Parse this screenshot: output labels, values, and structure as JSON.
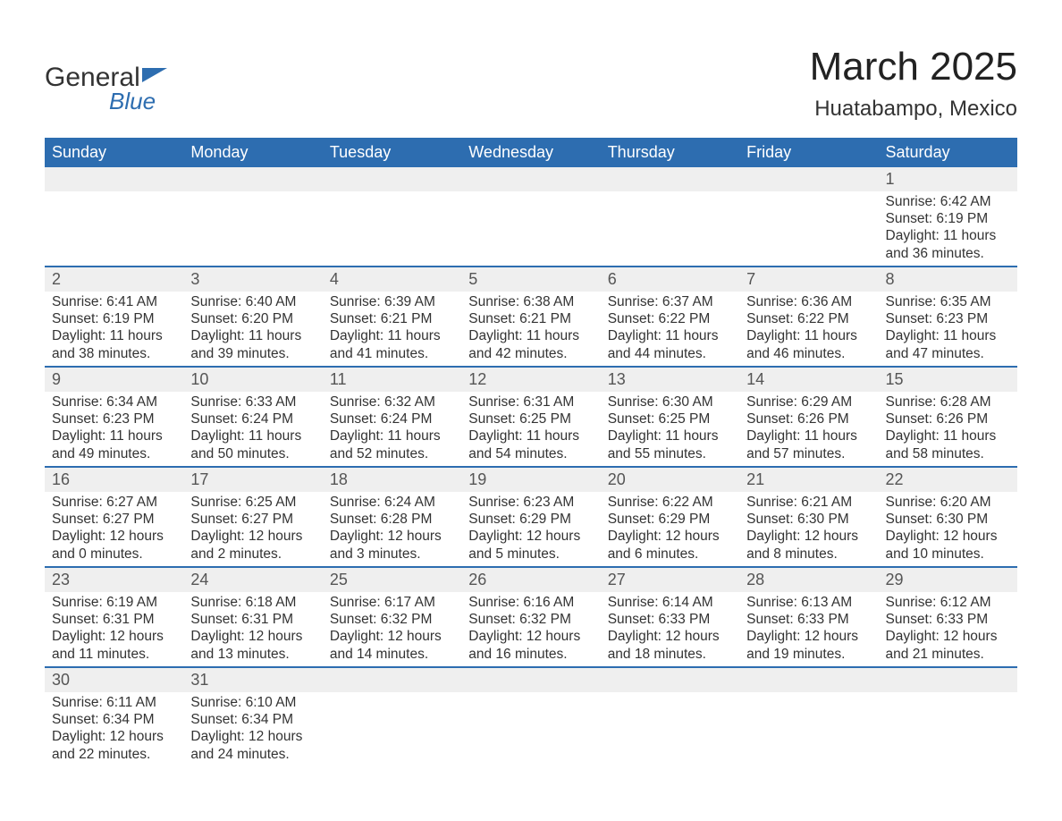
{
  "logo": {
    "line1": "General",
    "line2": "Blue"
  },
  "title": "March 2025",
  "subtitle": "Huatabampo, Mexico",
  "header_color": "#2d6db0",
  "row_separator_color": "#2d6db0",
  "daynum_bg": "#efefef",
  "text_color": "#333333",
  "weekdays": [
    "Sunday",
    "Monday",
    "Tuesday",
    "Wednesday",
    "Thursday",
    "Friday",
    "Saturday"
  ],
  "start_weekday_index": 6,
  "days": [
    {
      "n": 1,
      "sunrise": "6:42 AM",
      "sunset": "6:19 PM",
      "daylight": "11 hours and 36 minutes."
    },
    {
      "n": 2,
      "sunrise": "6:41 AM",
      "sunset": "6:19 PM",
      "daylight": "11 hours and 38 minutes."
    },
    {
      "n": 3,
      "sunrise": "6:40 AM",
      "sunset": "6:20 PM",
      "daylight": "11 hours and 39 minutes."
    },
    {
      "n": 4,
      "sunrise": "6:39 AM",
      "sunset": "6:21 PM",
      "daylight": "11 hours and 41 minutes."
    },
    {
      "n": 5,
      "sunrise": "6:38 AM",
      "sunset": "6:21 PM",
      "daylight": "11 hours and 42 minutes."
    },
    {
      "n": 6,
      "sunrise": "6:37 AM",
      "sunset": "6:22 PM",
      "daylight": "11 hours and 44 minutes."
    },
    {
      "n": 7,
      "sunrise": "6:36 AM",
      "sunset": "6:22 PM",
      "daylight": "11 hours and 46 minutes."
    },
    {
      "n": 8,
      "sunrise": "6:35 AM",
      "sunset": "6:23 PM",
      "daylight": "11 hours and 47 minutes."
    },
    {
      "n": 9,
      "sunrise": "6:34 AM",
      "sunset": "6:23 PM",
      "daylight": "11 hours and 49 minutes."
    },
    {
      "n": 10,
      "sunrise": "6:33 AM",
      "sunset": "6:24 PM",
      "daylight": "11 hours and 50 minutes."
    },
    {
      "n": 11,
      "sunrise": "6:32 AM",
      "sunset": "6:24 PM",
      "daylight": "11 hours and 52 minutes."
    },
    {
      "n": 12,
      "sunrise": "6:31 AM",
      "sunset": "6:25 PM",
      "daylight": "11 hours and 54 minutes."
    },
    {
      "n": 13,
      "sunrise": "6:30 AM",
      "sunset": "6:25 PM",
      "daylight": "11 hours and 55 minutes."
    },
    {
      "n": 14,
      "sunrise": "6:29 AM",
      "sunset": "6:26 PM",
      "daylight": "11 hours and 57 minutes."
    },
    {
      "n": 15,
      "sunrise": "6:28 AM",
      "sunset": "6:26 PM",
      "daylight": "11 hours and 58 minutes."
    },
    {
      "n": 16,
      "sunrise": "6:27 AM",
      "sunset": "6:27 PM",
      "daylight": "12 hours and 0 minutes."
    },
    {
      "n": 17,
      "sunrise": "6:25 AM",
      "sunset": "6:27 PM",
      "daylight": "12 hours and 2 minutes."
    },
    {
      "n": 18,
      "sunrise": "6:24 AM",
      "sunset": "6:28 PM",
      "daylight": "12 hours and 3 minutes."
    },
    {
      "n": 19,
      "sunrise": "6:23 AM",
      "sunset": "6:29 PM",
      "daylight": "12 hours and 5 minutes."
    },
    {
      "n": 20,
      "sunrise": "6:22 AM",
      "sunset": "6:29 PM",
      "daylight": "12 hours and 6 minutes."
    },
    {
      "n": 21,
      "sunrise": "6:21 AM",
      "sunset": "6:30 PM",
      "daylight": "12 hours and 8 minutes."
    },
    {
      "n": 22,
      "sunrise": "6:20 AM",
      "sunset": "6:30 PM",
      "daylight": "12 hours and 10 minutes."
    },
    {
      "n": 23,
      "sunrise": "6:19 AM",
      "sunset": "6:31 PM",
      "daylight": "12 hours and 11 minutes."
    },
    {
      "n": 24,
      "sunrise": "6:18 AM",
      "sunset": "6:31 PM",
      "daylight": "12 hours and 13 minutes."
    },
    {
      "n": 25,
      "sunrise": "6:17 AM",
      "sunset": "6:32 PM",
      "daylight": "12 hours and 14 minutes."
    },
    {
      "n": 26,
      "sunrise": "6:16 AM",
      "sunset": "6:32 PM",
      "daylight": "12 hours and 16 minutes."
    },
    {
      "n": 27,
      "sunrise": "6:14 AM",
      "sunset": "6:33 PM",
      "daylight": "12 hours and 18 minutes."
    },
    {
      "n": 28,
      "sunrise": "6:13 AM",
      "sunset": "6:33 PM",
      "daylight": "12 hours and 19 minutes."
    },
    {
      "n": 29,
      "sunrise": "6:12 AM",
      "sunset": "6:33 PM",
      "daylight": "12 hours and 21 minutes."
    },
    {
      "n": 30,
      "sunrise": "6:11 AM",
      "sunset": "6:34 PM",
      "daylight": "12 hours and 22 minutes."
    },
    {
      "n": 31,
      "sunrise": "6:10 AM",
      "sunset": "6:34 PM",
      "daylight": "12 hours and 24 minutes."
    }
  ],
  "labels": {
    "sunrise": "Sunrise:",
    "sunset": "Sunset:",
    "daylight": "Daylight:"
  }
}
